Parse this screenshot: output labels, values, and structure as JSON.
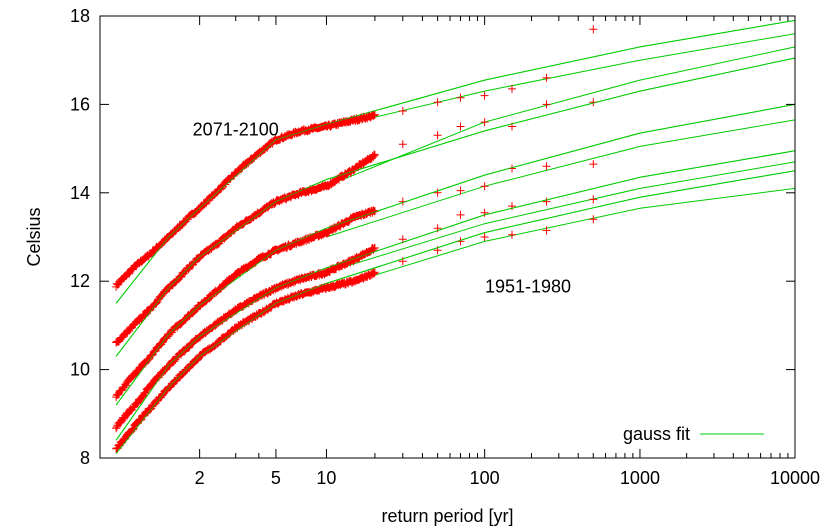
{
  "chart_data": {
    "type": "scatter",
    "title": "",
    "xlabel": "return period [yr]",
    "ylabel": "Celsius",
    "xscale": "gumbel",
    "xlim": [
      1.05,
      10000
    ],
    "ylim": [
      8,
      18
    ],
    "grid": false,
    "x_ticks": [
      {
        "value": 2,
        "label": "2"
      },
      {
        "value": 5,
        "label": "5"
      },
      {
        "value": 10,
        "label": "10"
      },
      {
        "value": 100,
        "label": "100"
      },
      {
        "value": 1000,
        "label": "1000"
      },
      {
        "value": 10000,
        "label": "10000"
      }
    ],
    "x_minor_ticks": [
      3,
      4,
      20,
      30,
      40,
      50,
      60,
      70,
      80,
      90,
      200,
      300,
      400,
      500,
      600,
      700,
      800,
      900,
      2000,
      3000,
      4000,
      5000,
      6000,
      7000,
      8000,
      9000
    ],
    "y_ticks": [
      {
        "value": 8,
        "label": "8"
      },
      {
        "value": 10,
        "label": "10"
      },
      {
        "value": 12,
        "label": "12"
      },
      {
        "value": 14,
        "label": "14"
      },
      {
        "value": 16,
        "label": "16"
      },
      {
        "value": 18,
        "label": "18"
      }
    ],
    "annotations": [
      {
        "text": "2071-2100",
        "x": 3.0,
        "y": 15.3
      },
      {
        "text": "1951-1980",
        "x": 190,
        "y": 11.75
      }
    ],
    "legend": {
      "position": "bottom-right",
      "label": "gauss fit",
      "color": "#00cc00"
    },
    "marker_color": "#ff0000",
    "fit_color": "#00cc00",
    "series": [
      {
        "points": [
          [
            1.1,
            11.9
          ],
          [
            1.15,
            12.15
          ],
          [
            1.2,
            12.35
          ],
          [
            1.3,
            12.6
          ],
          [
            1.5,
            13.0
          ],
          [
            1.8,
            13.45
          ],
          [
            2.0,
            13.65
          ],
          [
            2.5,
            14.1
          ],
          [
            3.0,
            14.45
          ],
          [
            4.0,
            14.9
          ],
          [
            5.0,
            15.2
          ],
          [
            7.0,
            15.4
          ],
          [
            10.0,
            15.5
          ],
          [
            15.0,
            15.65
          ],
          [
            20.0,
            15.75
          ],
          [
            30.0,
            15.85
          ],
          [
            50.0,
            16.05
          ],
          [
            70.0,
            16.15
          ],
          [
            100.0,
            16.2
          ],
          [
            150.0,
            16.35
          ],
          [
            250.0,
            16.6
          ],
          [
            500.0,
            17.7
          ]
        ],
        "fits": [
          [
            [
              1.1,
              11.5
            ],
            [
              1.5,
              13.0
            ],
            [
              2.0,
              13.65
            ],
            [
              5.0,
              15.2
            ],
            [
              10.0,
              15.55
            ],
            [
              100.0,
              16.55
            ],
            [
              1000.0,
              17.3
            ],
            [
              10000.0,
              17.9
            ]
          ],
          [
            [
              10.0,
              15.45
            ],
            [
              100.0,
              16.3
            ],
            [
              1000.0,
              17.0
            ],
            [
              10000.0,
              17.6
            ]
          ]
        ]
      },
      {
        "points": [
          [
            1.1,
            10.6
          ],
          [
            1.15,
            10.85
          ],
          [
            1.2,
            11.05
          ],
          [
            1.3,
            11.35
          ],
          [
            1.5,
            11.85
          ],
          [
            2.0,
            12.55
          ],
          [
            2.5,
            12.9
          ],
          [
            3.0,
            13.2
          ],
          [
            4.0,
            13.55
          ],
          [
            5.0,
            13.8
          ],
          [
            7.0,
            14.0
          ],
          [
            10.0,
            14.15
          ],
          [
            15.0,
            14.55
          ],
          [
            20.0,
            14.85
          ],
          [
            30.0,
            15.1
          ],
          [
            50.0,
            15.3
          ],
          [
            70.0,
            15.5
          ],
          [
            100.0,
            15.6
          ],
          [
            150.0,
            15.5
          ],
          [
            250.0,
            16.0
          ],
          [
            500.0,
            16.05
          ]
        ],
        "fits": [
          [
            [
              1.1,
              10.3
            ],
            [
              1.5,
              11.85
            ],
            [
              2.0,
              12.55
            ],
            [
              5.0,
              13.8
            ],
            [
              10.0,
              14.3
            ],
            [
              100.0,
              15.4
            ],
            [
              1000.0,
              16.3
            ],
            [
              10000.0,
              17.05
            ]
          ],
          [
            [
              10.0,
              14.15
            ],
            [
              100.0,
              15.6
            ],
            [
              1000.0,
              16.55
            ],
            [
              10000.0,
              17.3
            ]
          ]
        ]
      },
      {
        "points": [
          [
            1.1,
            9.4
          ],
          [
            1.15,
            9.7
          ],
          [
            1.2,
            9.95
          ],
          [
            1.3,
            10.25
          ],
          [
            1.5,
            10.8
          ],
          [
            2.0,
            11.45
          ],
          [
            2.5,
            11.85
          ],
          [
            3.0,
            12.15
          ],
          [
            4.0,
            12.5
          ],
          [
            5.0,
            12.7
          ],
          [
            7.0,
            12.9
          ],
          [
            10.0,
            13.1
          ],
          [
            15.0,
            13.45
          ],
          [
            20.0,
            13.6
          ],
          [
            30.0,
            13.8
          ],
          [
            50.0,
            14.0
          ],
          [
            70.0,
            14.05
          ],
          [
            100.0,
            14.15
          ],
          [
            150.0,
            14.55
          ],
          [
            250.0,
            14.6
          ],
          [
            500.0,
            14.65
          ]
        ],
        "fits": [
          [
            [
              1.1,
              9.2
            ],
            [
              1.5,
              10.8
            ],
            [
              2.0,
              11.45
            ],
            [
              5.0,
              12.7
            ],
            [
              10.0,
              13.2
            ],
            [
              100.0,
              14.4
            ],
            [
              1000.0,
              15.35
            ],
            [
              10000.0,
              16.0
            ]
          ],
          [
            [
              10.0,
              13.0
            ],
            [
              100.0,
              14.15
            ],
            [
              1000.0,
              15.05
            ],
            [
              10000.0,
              15.65
            ]
          ]
        ]
      },
      {
        "points": [
          [
            1.1,
            8.7
          ],
          [
            1.15,
            9.0
          ],
          [
            1.2,
            9.2
          ],
          [
            1.3,
            9.6
          ],
          [
            1.5,
            10.1
          ],
          [
            2.0,
            10.75
          ],
          [
            2.5,
            11.1
          ],
          [
            3.0,
            11.35
          ],
          [
            4.0,
            11.65
          ],
          [
            5.0,
            11.85
          ],
          [
            7.0,
            12.05
          ],
          [
            10.0,
            12.2
          ],
          [
            15.0,
            12.5
          ],
          [
            20.0,
            12.75
          ],
          [
            30.0,
            12.95
          ],
          [
            50.0,
            13.2
          ],
          [
            70.0,
            13.5
          ],
          [
            100.0,
            13.55
          ],
          [
            150.0,
            13.7
          ],
          [
            250.0,
            13.8
          ],
          [
            500.0,
            13.85
          ]
        ],
        "fits": [
          [
            [
              1.1,
              8.4
            ],
            [
              1.5,
              10.1
            ],
            [
              2.0,
              10.75
            ],
            [
              5.0,
              11.85
            ],
            [
              10.0,
              12.3
            ],
            [
              100.0,
              13.5
            ],
            [
              1000.0,
              14.35
            ],
            [
              10000.0,
              14.95
            ]
          ],
          [
            [
              10.0,
              12.2
            ],
            [
              100.0,
              13.3
            ],
            [
              1000.0,
              14.1
            ],
            [
              10000.0,
              14.7
            ]
          ]
        ]
      },
      {
        "points": [
          [
            1.1,
            8.2
          ],
          [
            1.15,
            8.5
          ],
          [
            1.2,
            8.75
          ],
          [
            1.3,
            9.1
          ],
          [
            1.5,
            9.6
          ],
          [
            2.0,
            10.3
          ],
          [
            2.5,
            10.65
          ],
          [
            3.0,
            10.95
          ],
          [
            4.0,
            11.25
          ],
          [
            5.0,
            11.5
          ],
          [
            7.0,
            11.7
          ],
          [
            10.0,
            11.85
          ],
          [
            15.0,
            12.0
          ],
          [
            20.0,
            12.2
          ],
          [
            30.0,
            12.45
          ],
          [
            50.0,
            12.7
          ],
          [
            70.0,
            12.9
          ],
          [
            100.0,
            13.0
          ],
          [
            150.0,
            13.05
          ],
          [
            250.0,
            13.15
          ],
          [
            500.0,
            13.4
          ]
        ],
        "fits": [
          [
            [
              1.1,
              8.1
            ],
            [
              1.5,
              9.6
            ],
            [
              2.0,
              10.3
            ],
            [
              5.0,
              11.5
            ],
            [
              10.0,
              11.95
            ],
            [
              100.0,
              13.1
            ],
            [
              1000.0,
              13.9
            ],
            [
              10000.0,
              14.5
            ]
          ],
          [
            [
              10.0,
              11.8
            ],
            [
              100.0,
              12.9
            ],
            [
              1000.0,
              13.65
            ],
            [
              10000.0,
              14.1
            ]
          ]
        ]
      }
    ]
  }
}
